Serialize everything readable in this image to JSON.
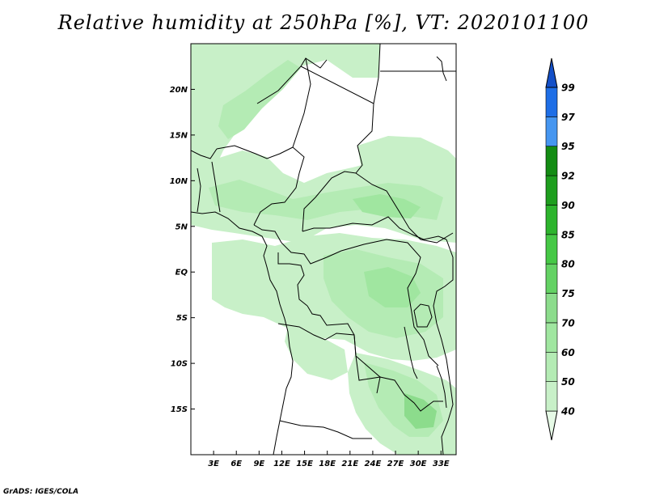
{
  "title": "Relative humidity at 250hPa [%], VT: 2020101100",
  "credit": "GrADS: IGES/COLA",
  "map": {
    "lon_range": [
      0,
      35
    ],
    "lat_range": [
      -20,
      25
    ],
    "lat_ticks": [
      {
        "value": 20,
        "label": "20N"
      },
      {
        "value": 15,
        "label": "15N"
      },
      {
        "value": 10,
        "label": "10N"
      },
      {
        "value": 5,
        "label": "5N"
      },
      {
        "value": 0,
        "label": "EQ"
      },
      {
        "value": -5,
        "label": "5S"
      },
      {
        "value": -10,
        "label": "10S"
      },
      {
        "value": -15,
        "label": "15S"
      }
    ],
    "lon_ticks": [
      {
        "value": 3,
        "label": "3E"
      },
      {
        "value": 6,
        "label": "6E"
      },
      {
        "value": 9,
        "label": "9E"
      },
      {
        "value": 12,
        "label": "12E"
      },
      {
        "value": 15,
        "label": "15E"
      },
      {
        "value": 18,
        "label": "18E"
      },
      {
        "value": 21,
        "label": "21E"
      },
      {
        "value": 24,
        "label": "24E"
      },
      {
        "value": 27,
        "label": "27E"
      },
      {
        "value": 30,
        "label": "30E"
      },
      {
        "value": 33,
        "label": "33E"
      }
    ]
  },
  "colorbar": {
    "levels": [
      "40",
      "50",
      "60",
      "70",
      "75",
      "80",
      "85",
      "90",
      "92",
      "95",
      "97",
      "99"
    ],
    "colors": [
      "#e6fae6",
      "#c8f0c8",
      "#b4ebb4",
      "#a0e6a0",
      "#8cdc8c",
      "#64d264",
      "#46c846",
      "#2db42d",
      "#1e9e1e",
      "#148c14",
      "#4696f0",
      "#1e6ee6",
      "#1450c8"
    ]
  }
}
